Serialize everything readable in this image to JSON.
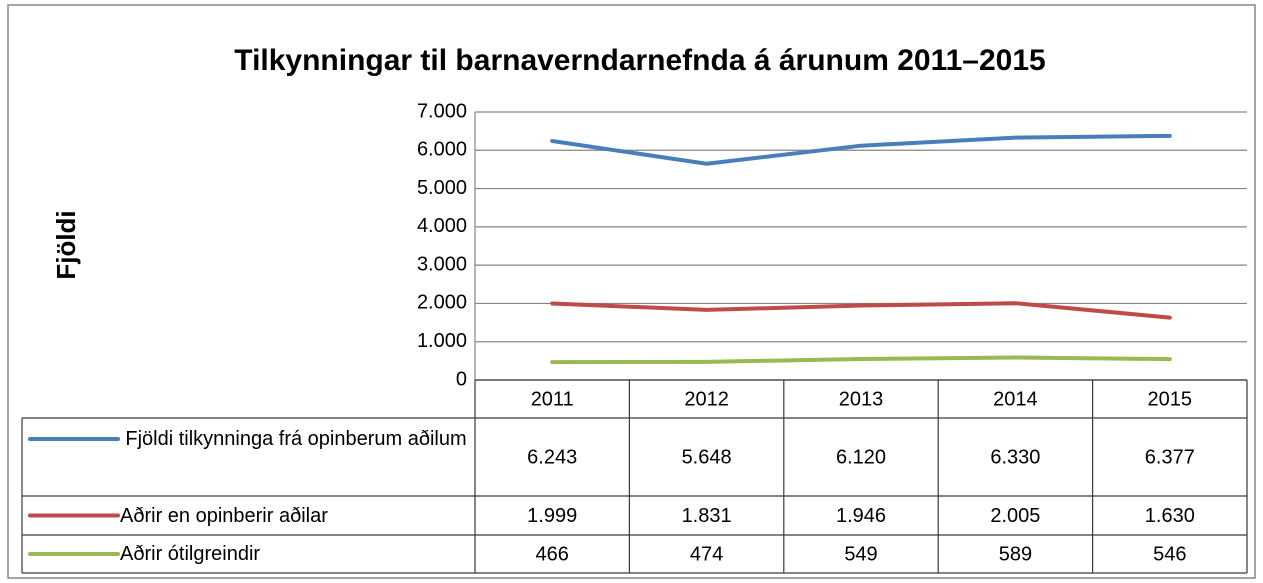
{
  "chart_data": {
    "type": "line",
    "title": "Tilkynningar til barnaverndarnefnda á árunum 2011–2015",
    "y_label": "Fjöldi",
    "categories": [
      "2011",
      "2012",
      "2013",
      "2014",
      "2015"
    ],
    "series": [
      {
        "name": "Fjöldi tilkynninga frá opinberum aðilum",
        "color": "#4a7ebb",
        "values": [
          6243,
          5648,
          6120,
          6330,
          6377
        ],
        "value_labels": [
          "6.243",
          "5.648",
          "6.120",
          "6.330",
          "6.377"
        ]
      },
      {
        "name": "Aðrir en opinberir aðilar",
        "color": "#be4b48",
        "values": [
          1999,
          1831,
          1946,
          2005,
          1630
        ],
        "value_labels": [
          "1.999",
          "1.831",
          "1.946",
          "2.005",
          "1.630"
        ]
      },
      {
        "name": "Aðrir ótilgreindir",
        "color": "#98b954",
        "values": [
          466,
          474,
          549,
          589,
          546
        ],
        "value_labels": [
          "466",
          "474",
          "549",
          "589",
          "546"
        ]
      }
    ],
    "ylim": [
      0,
      7000
    ],
    "yticks": [
      0,
      {
        "value": 1000,
        "label": "1.000"
      },
      {
        "value": 2000,
        "label": "2.000"
      },
      {
        "value": 3000,
        "label": "3.000"
      },
      {
        "value": 4000,
        "label": "4.000"
      },
      {
        "value": 5000,
        "label": "5.000"
      },
      {
        "value": 6000,
        "label": "6.000"
      },
      {
        "value": 7000,
        "label": "7.000"
      }
    ],
    "grid": true
  }
}
